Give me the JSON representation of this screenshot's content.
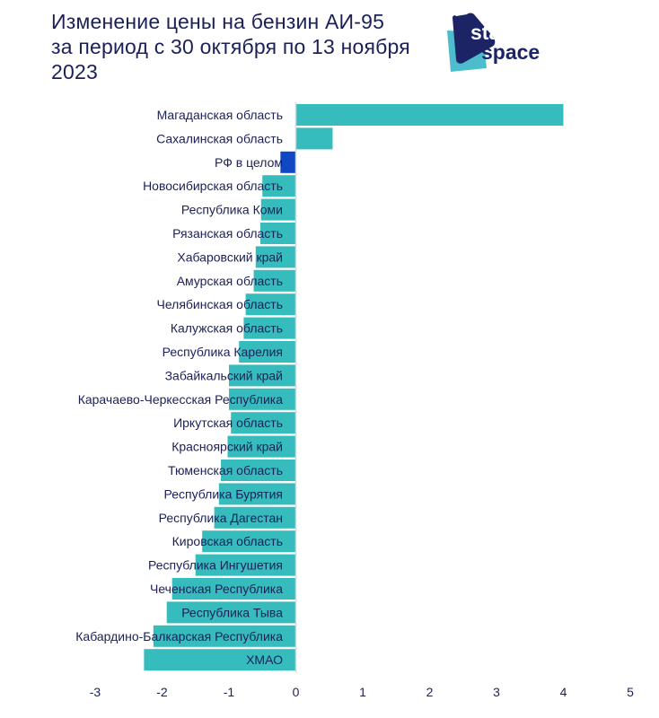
{
  "chart_data": {
    "type": "bar",
    "orientation": "horizontal",
    "title": "Изменение цены на бензин АИ-95 за период с 30 октября по 13 ноября 2023",
    "categories": [
      "Магаданская область",
      "Сахалинская область",
      "РФ в целом",
      "Новосибирская область",
      "Республика Коми",
      "Рязанская область",
      "Хабаровский край",
      "Амурская область",
      "Челябинская область",
      "Калужская область",
      "Республика Карелия",
      "Забайкальский край",
      "Карачаево-Черкесская Республика",
      "Иркутская область",
      "Красноярский край",
      "Тюменская область",
      "Республика Бурятия",
      "Республика Дагестан",
      "Кировская область",
      "Республика Ингушетия",
      "Чеченская Республика",
      "Республика Тыва",
      "Кабардино-Балкарская Республика",
      "ХМАО"
    ],
    "values": [
      4.0,
      0.55,
      -0.23,
      -0.5,
      -0.52,
      -0.53,
      -0.6,
      -0.63,
      -0.75,
      -0.78,
      -0.85,
      -1.0,
      -1.0,
      -0.97,
      -1.02,
      -1.12,
      -1.15,
      -1.22,
      -1.4,
      -1.5,
      -1.85,
      -1.93,
      -2.13,
      -2.27
    ],
    "highlight": "РФ в целом",
    "xlim": [
      -3,
      5
    ],
    "xticks": [
      "-3",
      "-2",
      "-1",
      "0",
      "1",
      "2",
      "3",
      "4",
      "5"
    ],
    "grid": false,
    "colors": {
      "bar": "#37bcbd",
      "highlight": "#1047c4",
      "text": "#1b2058",
      "axis": "#d4d4d4"
    }
  },
  "logo": {
    "line1": "stat",
    "line2": "space"
  }
}
